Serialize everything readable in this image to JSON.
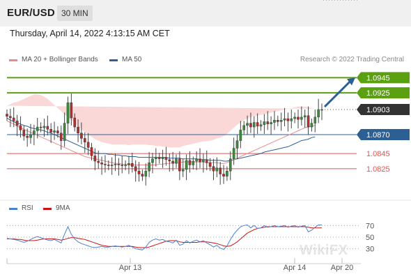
{
  "header": {
    "symbol": "EUR/USD",
    "timeframe": "30 MIN"
  },
  "datetime": "Thursday, April 14, 2022 4:13:15 AM CET",
  "legend_main": [
    {
      "label": "MA 20 + Bollinger Bands",
      "color": "#e88a8a"
    },
    {
      "label": "MA 50",
      "color": "#2c5f93"
    }
  ],
  "credit": "Research © 2022 Trading Central",
  "legend_rsi": [
    {
      "label": "RSI",
      "color": "#4a7fd4"
    },
    {
      "label": "9MA",
      "color": "#cc1111"
    }
  ],
  "watermark": "WikiFX",
  "colors": {
    "resistance": "#5aa011",
    "support_pivot": "#2c5f93",
    "support": "#e05555",
    "current": "#333333",
    "candle_up": "#3c8a3c",
    "candle_down": "#b03030",
    "band": "#fbd8d8"
  },
  "chart_data": {
    "type": "candlestick",
    "ylim": [
      1.079,
      1.096
    ],
    "levels": [
      {
        "value": 1.0945,
        "label": "1.0945",
        "kind": "resistance"
      },
      {
        "value": 1.0925,
        "label": "1.0925",
        "kind": "resistance"
      },
      {
        "value": 1.0903,
        "label": "1.0903",
        "kind": "current"
      },
      {
        "value": 1.087,
        "label": "1.0870",
        "kind": "pivot"
      },
      {
        "value": 1.0845,
        "label": "1.0845",
        "kind": "support"
      },
      {
        "value": 1.0825,
        "label": "1.0825",
        "kind": "support"
      }
    ],
    "close": [
      1.0894,
      1.0892,
      1.0888,
      1.0882,
      1.0876,
      1.0868,
      1.0866,
      1.087,
      1.0875,
      1.088,
      1.0879,
      1.0881,
      1.0877,
      1.0873,
      1.0875,
      1.0872,
      1.0862,
      1.0885,
      1.0912,
      1.0892,
      1.088,
      1.0872,
      1.0865,
      1.086,
      1.0853,
      1.0842,
      1.0835,
      1.0833,
      1.0831,
      1.083,
      1.0829,
      1.083,
      1.0831,
      1.083,
      1.0829,
      1.083,
      1.0832,
      1.0828,
      1.0822,
      1.0818,
      1.0815,
      1.0822,
      1.0833,
      1.0838,
      1.084,
      1.0838,
      1.084,
      1.0837,
      1.0835,
      1.0832,
      1.0838,
      1.0822,
      1.0824,
      1.0836,
      1.083,
      1.0835,
      1.0838,
      1.0834,
      1.0837,
      1.0833,
      1.0828,
      1.0822,
      1.0826,
      1.0818,
      1.0815,
      1.0822,
      1.0838,
      1.0852,
      1.0862,
      1.0876,
      1.0882,
      1.0885,
      1.088,
      1.0886,
      1.0881,
      1.0883,
      1.0887,
      1.0884,
      1.0886,
      1.0889,
      1.0887,
      1.0889,
      1.0891,
      1.0888,
      1.0891,
      1.0893,
      1.089,
      1.0893,
      1.0895,
      1.088,
      1.0885,
      1.0893,
      1.0903,
      1.0903
    ],
    "ma50": [
      1.0892,
      1.0889,
      1.0887,
      1.0885,
      1.0884,
      1.0882,
      1.0881,
      1.0879,
      1.0878,
      1.0877,
      1.0876,
      1.0875,
      1.0873,
      1.0872,
      1.087,
      1.0868,
      1.0866,
      1.0864,
      1.0862,
      1.086,
      1.0858,
      1.0856,
      1.0854,
      1.0852,
      1.085,
      1.0848,
      1.0846,
      1.0845,
      1.0845,
      1.0845,
      1.0844,
      1.0844,
      1.0843,
      1.0843,
      1.0842,
      1.0842,
      1.0841,
      1.0841,
      1.0841,
      1.084,
      1.084,
      1.084,
      1.084,
      1.084,
      1.084,
      1.084,
      1.084,
      1.084,
      1.0839,
      1.0839,
      1.0839,
      1.0839,
      1.0838,
      1.0838,
      1.0838,
      1.0838,
      1.0838,
      1.0837,
      1.0837,
      1.0837,
      1.0836,
      1.0836,
      1.0836,
      1.0836,
      1.0835,
      1.0835,
      1.0836,
      1.0837,
      1.0838,
      1.0839,
      1.084,
      1.0841,
      1.0842,
      1.0843,
      1.0844,
      1.0845,
      1.0847,
      1.0848,
      1.0849,
      1.085,
      1.0851,
      1.0852,
      1.0853,
      1.0854,
      1.0856,
      1.0858,
      1.086,
      1.0862,
      1.0863,
      1.0864,
      1.0866,
      1.0867
    ],
    "ma20": [
      1.0888,
      1.0886,
      1.0884,
      1.0881,
      1.0879,
      1.0877,
      1.0875,
      1.0873,
      1.0871,
      1.0869,
      1.0867,
      1.0865,
      1.0863,
      1.0861,
      1.0859,
      1.0857,
      1.0855,
      1.0853,
      1.0851,
      1.0849,
      1.0847,
      1.0845,
      1.0843,
      1.0841,
      1.084,
      1.0839,
      1.0838,
      1.0837,
      1.0836,
      1.0835,
      1.0834,
      1.0833,
      1.0832,
      1.0832,
      1.0831,
      1.0831,
      1.083,
      1.083,
      1.083,
      1.083,
      1.083,
      1.083,
      1.083,
      1.083,
      1.083,
      1.0831,
      1.0831,
      1.0832,
      1.0832,
      1.0833,
      1.0833,
      1.0833,
      1.0834,
      1.0834,
      1.0834,
      1.0834,
      1.0834,
      1.0834,
      1.0834,
      1.0833,
      1.0833,
      1.0833,
      1.0833,
      1.0832,
      1.0832,
      1.0833,
      1.0835,
      1.0837,
      1.0839,
      1.0841,
      1.0843,
      1.0845,
      1.0847,
      1.0849,
      1.0851,
      1.0853,
      1.0855,
      1.0857,
      1.0859,
      1.0861,
      1.0863,
      1.0865,
      1.0867,
      1.0869,
      1.0871,
      1.0873,
      1.0875,
      1.0877,
      1.0879,
      1.088,
      1.0881,
      1.0882
    ],
    "bb_width": [
      0.002,
      0.0024,
      0.0028,
      0.0032,
      0.0036,
      0.004,
      0.0044,
      0.0048,
      0.0052,
      0.0054,
      0.0055,
      0.0055,
      0.0054,
      0.0052,
      0.005,
      0.0048,
      0.0046,
      0.0044,
      0.0042,
      0.004,
      0.0038,
      0.0036,
      0.0034,
      0.0032,
      0.003,
      0.0028,
      0.0026,
      0.0025,
      0.0024,
      0.0024,
      0.0024,
      0.0024,
      0.0025,
      0.0025,
      0.0026,
      0.0026,
      0.0026,
      0.0027,
      0.0027,
      0.0027,
      0.0027,
      0.0027,
      0.0026,
      0.0026,
      0.0025,
      0.0024,
      0.0023,
      0.0022,
      0.0021,
      0.002,
      0.002,
      0.002,
      0.0021,
      0.0022,
      0.0023,
      0.0024,
      0.0025,
      0.0026,
      0.0027,
      0.0028,
      0.0029,
      0.003,
      0.0032,
      0.0034,
      0.0036,
      0.0038,
      0.004,
      0.0042,
      0.0044,
      0.0045,
      0.0046,
      0.0046,
      0.0046,
      0.0045,
      0.0044,
      0.0043,
      0.0042,
      0.0041,
      0.004,
      0.0039,
      0.0038,
      0.0037,
      0.0036,
      0.0035,
      0.0034,
      0.0033,
      0.0032,
      0.003,
      0.0028,
      0.0026,
      0.0024,
      0.0022
    ],
    "forecast": {
      "from": 1.0903,
      "to": 1.0945
    },
    "rsi": {
      "ticks": [
        "70",
        "50",
        "30"
      ],
      "ylim": [
        20,
        80
      ],
      "rsi": [
        48,
        47,
        46,
        45,
        43,
        41,
        43,
        46,
        49,
        51,
        49,
        47,
        45,
        44,
        46,
        43,
        40,
        55,
        68,
        55,
        47,
        42,
        39,
        37,
        35,
        33,
        32,
        33,
        34,
        33,
        33,
        34,
        35,
        34,
        33,
        34,
        36,
        33,
        30,
        29,
        28,
        33,
        41,
        45,
        47,
        45,
        46,
        43,
        42,
        40,
        45,
        36,
        38,
        44,
        40,
        43,
        45,
        42,
        44,
        40,
        37,
        33,
        36,
        31,
        29,
        35,
        46,
        55,
        62,
        68,
        70,
        71,
        66,
        70,
        65,
        66,
        70,
        67,
        68,
        70,
        68,
        69,
        70,
        67,
        69,
        70,
        67,
        69,
        70,
        59,
        62,
        67,
        71,
        71
      ],
      "ma": [
        47,
        47,
        47,
        46,
        46,
        45,
        44,
        44,
        44,
        45,
        46,
        47,
        47,
        47,
        47,
        46,
        45,
        46,
        48,
        49,
        49,
        48,
        47,
        46,
        44,
        42,
        40,
        38,
        36,
        35,
        34,
        34,
        34,
        34,
        34,
        34,
        34,
        34,
        33,
        32,
        32,
        32,
        33,
        35,
        37,
        39,
        41,
        43,
        44,
        44,
        44,
        42,
        41,
        41,
        41,
        41,
        41,
        42,
        42,
        42,
        41,
        40,
        39,
        37,
        35,
        34,
        35,
        38,
        42,
        47,
        52,
        57,
        60,
        63,
        65,
        66,
        67,
        68,
        68,
        68,
        68,
        68,
        68,
        68,
        68,
        68,
        68,
        68,
        68,
        67,
        66,
        66,
        66,
        66
      ]
    },
    "x_ticks": [
      "Apr 13",
      "Apr 14",
      "Apr 20"
    ]
  }
}
